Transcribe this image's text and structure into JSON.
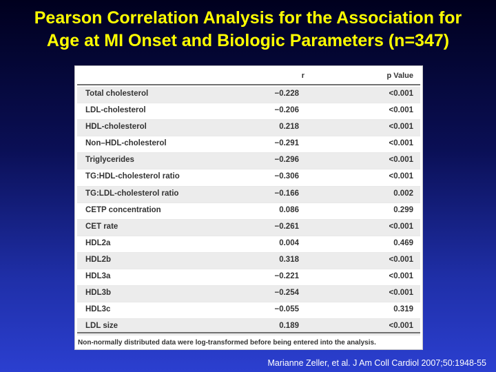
{
  "title": {
    "line1": "Pearson Correlation Analysis for the Association for",
    "line2": "Age at MI Onset and Biologic Parameters (n=347)"
  },
  "table": {
    "headers": {
      "name": "",
      "r": "r",
      "p": "p Value"
    },
    "rows": [
      {
        "name": "Total cholesterol",
        "r": "−0.228",
        "p": "<0.001"
      },
      {
        "name": "LDL-cholesterol",
        "r": "−0.206",
        "p": "<0.001"
      },
      {
        "name": "HDL-cholesterol",
        "r": "0.218",
        "p": "<0.001"
      },
      {
        "name": "Non–HDL-cholesterol",
        "r": "−0.291",
        "p": "<0.001"
      },
      {
        "name": "Triglycerides",
        "r": "−0.296",
        "p": "<0.001"
      },
      {
        "name": "TG:HDL-cholesterol ratio",
        "r": "−0.306",
        "p": "<0.001"
      },
      {
        "name": "TG:LDL-cholesterol ratio",
        "r": "−0.166",
        "p": "0.002"
      },
      {
        "name": "CETP concentration",
        "r": "0.086",
        "p": "0.299"
      },
      {
        "name": "CET rate",
        "r": "−0.261",
        "p": "<0.001"
      },
      {
        "name": "HDL2a",
        "r": "0.004",
        "p": "0.469"
      },
      {
        "name": "HDL2b",
        "r": "0.318",
        "p": "<0.001"
      },
      {
        "name": "HDL3a",
        "r": "−0.221",
        "p": "<0.001"
      },
      {
        "name": "HDL3b",
        "r": "−0.254",
        "p": "<0.001"
      },
      {
        "name": "HDL3c",
        "r": "−0.055",
        "p": "0.319"
      },
      {
        "name": "LDL size",
        "r": "0.189",
        "p": "<0.001"
      }
    ],
    "footnote": "Non-normally distributed data were log-transformed before being entered into the analysis."
  },
  "citation": "Marianne Zeller, et al. J Am Coll Cardiol 2007;50:1948-55",
  "colors": {
    "title": "#ffff00",
    "citation": "#ffffff",
    "row_shade": "#ececec"
  }
}
